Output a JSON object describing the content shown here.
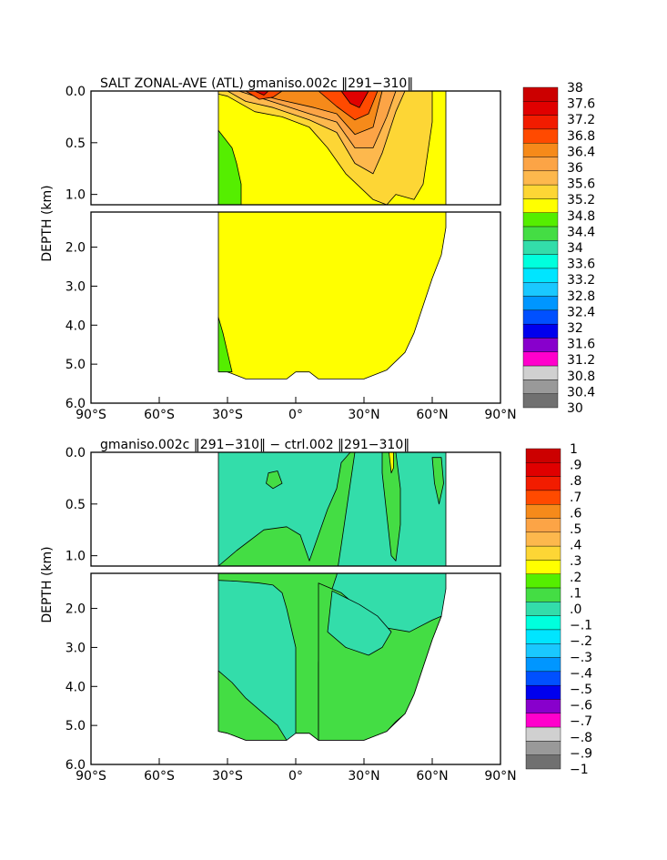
{
  "chart_data": [
    {
      "type": "heatmap",
      "title": "SALT ZONAL-AVE (ATL) gmaniso.002c ‖291−310‖",
      "xlabel": "",
      "ylabel": "DEPTH (km)",
      "x_range": [
        -90,
        90
      ],
      "y_range_km": [
        0,
        6
      ],
      "x_ticks": [
        "90°S",
        "60°S",
        "30°S",
        "0°",
        "30°N",
        "60°N",
        "90°N"
      ],
      "y_ticks": [
        "0.0",
        "0.5",
        "1.0",
        "2.0",
        "3.0",
        "4.0",
        "5.0",
        "6.0"
      ],
      "legend_labels": [
        "38",
        "37.6",
        "37.2",
        "36.8",
        "36.4",
        "36",
        "35.6",
        "35.2",
        "34.8",
        "34.4",
        "34",
        "33.6",
        "33.2",
        "32.8",
        "32.4",
        "32",
        "31.6",
        "31.2",
        "30.8",
        "30.4",
        "30"
      ],
      "legend_colors": [
        "#cc0000",
        "#e00000",
        "#f21c00",
        "#ff4a00",
        "#f68a1a",
        "#fca446",
        "#fdb84d",
        "#fdd635",
        "#ffff00",
        "#55ee00",
        "#44dd44",
        "#33ddaa",
        "#00ffdd",
        "#00e5ff",
        "#1ac8ff",
        "#0096ff",
        "#0050ff",
        "#0000ee",
        "#8800cc",
        "#ff00cc",
        "#d0d0d0",
        "#999999",
        "#707070"
      ],
      "domain": {
        "x_start": -34,
        "surface_x_end": 66,
        "bottom_profile": [
          [
            -34,
            5.15
          ],
          [
            -30,
            5.2
          ],
          [
            -26,
            5.32
          ],
          [
            -22,
            5.38
          ],
          [
            -14,
            5.38
          ],
          [
            -4,
            5.38
          ],
          [
            0,
            5.2
          ],
          [
            6,
            5.2
          ],
          [
            10,
            5.38
          ],
          [
            30,
            5.38
          ],
          [
            40,
            5.15
          ],
          [
            48,
            4.7
          ],
          [
            52,
            4.2
          ],
          [
            56,
            3.5
          ],
          [
            60,
            2.8
          ],
          [
            64,
            2.2
          ],
          [
            66,
            1.5
          ]
        ]
      },
      "regions": [
        {
          "value_range": "34.8-35.2",
          "color": "#ffff00",
          "points": [
            [
              -34,
              0
            ],
            [
              66,
              0
            ],
            [
              66,
              1.5
            ],
            [
              64,
              2.2
            ],
            [
              60,
              2.8
            ],
            [
              56,
              3.5
            ],
            [
              52,
              4.2
            ],
            [
              48,
              4.7
            ],
            [
              40,
              5.15
            ],
            [
              30,
              5.38
            ],
            [
              10,
              5.38
            ],
            [
              6,
              5.2
            ],
            [
              0,
              5.2
            ],
            [
              -4,
              5.38
            ],
            [
              -22,
              5.38
            ],
            [
              -30,
              5.2
            ],
            [
              -34,
              5.15
            ]
          ]
        },
        {
          "value_range": "34.4-34.8",
          "color": "#55ee00",
          "points": [
            [
              -34,
              0.38
            ],
            [
              -28,
              0.55
            ],
            [
              -26,
              0.7
            ],
            [
              -24,
              0.9
            ],
            [
              -24,
              1.1
            ],
            [
              -34,
              1.1
            ]
          ]
        },
        {
          "value_range": "34.4-34.8",
          "color": "#55ee00",
          "points": [
            [
              -34,
              3.8
            ],
            [
              -32,
              4.2
            ],
            [
              -30,
              4.7
            ],
            [
              -28,
              5.2
            ],
            [
              -34,
              5.2
            ]
          ]
        },
        {
          "value_range": "35.2-35.6",
          "color": "#fdd635",
          "points": [
            [
              -34,
              0.0
            ],
            [
              60,
              0.0
            ],
            [
              60,
              0.3
            ],
            [
              56,
              0.9
            ],
            [
              52,
              1.05
            ],
            [
              44,
              1.0
            ],
            [
              40,
              1.1
            ],
            [
              34,
              1.05
            ],
            [
              22,
              0.8
            ],
            [
              14,
              0.55
            ],
            [
              6,
              0.35
            ],
            [
              -6,
              0.25
            ],
            [
              -18,
              0.2
            ],
            [
              -30,
              0.05
            ],
            [
              -34,
              0.03
            ]
          ]
        },
        {
          "value_range": "35.6-36.0",
          "color": "#fdb84d",
          "points": [
            [
              -30,
              0.0
            ],
            [
              48,
              0.0
            ],
            [
              44,
              0.2
            ],
            [
              38,
              0.6
            ],
            [
              34,
              0.8
            ],
            [
              26,
              0.7
            ],
            [
              18,
              0.4
            ],
            [
              6,
              0.28
            ],
            [
              -10,
              0.16
            ],
            [
              -22,
              0.1
            ]
          ]
        },
        {
          "value_range": "36.0-36.4",
          "color": "#fca446",
          "points": [
            [
              -25,
              0.0
            ],
            [
              44,
              0.0
            ],
            [
              40,
              0.25
            ],
            [
              34,
              0.55
            ],
            [
              26,
              0.55
            ],
            [
              18,
              0.3
            ],
            [
              6,
              0.22
            ],
            [
              -8,
              0.12
            ]
          ]
        },
        {
          "value_range": "36.4-36.8",
          "color": "#f68a1a",
          "points": [
            [
              -22,
              0.0
            ],
            [
              38,
              0.0
            ],
            [
              34,
              0.35
            ],
            [
              26,
              0.42
            ],
            [
              18,
              0.22
            ],
            [
              8,
              0.16
            ],
            [
              -8,
              0.08
            ]
          ]
        },
        {
          "value_range": "36.8-37.2",
          "color": "#ff4a00",
          "points": [
            [
              -22,
              0.0
            ],
            [
              -6,
              0.0
            ],
            [
              -10,
              0.06
            ],
            [
              -16,
              0.08
            ]
          ]
        },
        {
          "value_range": "36.8-37.2",
          "color": "#ff4a00",
          "points": [
            [
              10,
              0.0
            ],
            [
              36,
              0.0
            ],
            [
              32,
              0.22
            ],
            [
              26,
              0.28
            ],
            [
              18,
              0.15
            ]
          ]
        },
        {
          "value_range": "37.2-37.6",
          "color": "#e00000",
          "points": [
            [
              -18,
              0.0
            ],
            [
              -12,
              0.0
            ],
            [
              -14,
              0.04
            ]
          ]
        },
        {
          "value_range": "37.2-37.6",
          "color": "#e00000",
          "points": [
            [
              20,
              0.0
            ],
            [
              32,
              0.0
            ],
            [
              28,
              0.16
            ],
            [
              24,
              0.12
            ]
          ]
        }
      ]
    },
    {
      "type": "heatmap",
      "title": "gmaniso.002c ‖291−310‖ − ctrl.002 ‖291−310‖",
      "xlabel": "",
      "ylabel": "DEPTH (km)",
      "x_range": [
        -90,
        90
      ],
      "y_range_km": [
        0,
        6
      ],
      "x_ticks": [
        "90°S",
        "60°S",
        "30°S",
        "0°",
        "30°N",
        "60°N",
        "90°N"
      ],
      "y_ticks": [
        "0.0",
        "0.5",
        "1.0",
        "2.0",
        "3.0",
        "4.0",
        "5.0",
        "6.0"
      ],
      "legend_labels": [
        "1",
        ".9",
        ".8",
        ".7",
        ".6",
        ".5",
        ".4",
        ".3",
        ".2",
        ".1",
        ".0",
        "−.1",
        "−.2",
        "−.3",
        "−.4",
        "−.5",
        "−.6",
        "−.7",
        "−.8",
        "−.9",
        "−1"
      ],
      "legend_colors": [
        "#cc0000",
        "#e00000",
        "#f21c00",
        "#ff4a00",
        "#f68a1a",
        "#fca446",
        "#fdb84d",
        "#fdd635",
        "#ffff00",
        "#55ee00",
        "#44dd44",
        "#33ddaa",
        "#00ffdd",
        "#00e5ff",
        "#1ac8ff",
        "#0096ff",
        "#0050ff",
        "#0000ee",
        "#8800cc",
        "#ff00cc",
        "#d0d0d0",
        "#999999",
        "#707070"
      ],
      "domain": {
        "x_start": -34,
        "surface_x_end": 66,
        "bottom_profile": [
          [
            -34,
            5.15
          ],
          [
            -30,
            5.2
          ],
          [
            -26,
            5.32
          ],
          [
            -22,
            5.38
          ],
          [
            -14,
            5.38
          ],
          [
            -4,
            5.38
          ],
          [
            0,
            5.2
          ],
          [
            6,
            5.2
          ],
          [
            10,
            5.38
          ],
          [
            30,
            5.38
          ],
          [
            40,
            5.15
          ],
          [
            48,
            4.7
          ],
          [
            52,
            4.2
          ],
          [
            56,
            3.5
          ],
          [
            60,
            2.8
          ],
          [
            64,
            2.2
          ],
          [
            66,
            1.5
          ]
        ]
      },
      "regions": [
        {
          "value_range": "-0.1-0.0",
          "color": "#33ddaa",
          "points": [
            [
              -34,
              0
            ],
            [
              66,
              0
            ],
            [
              66,
              1.5
            ],
            [
              64,
              2.2
            ],
            [
              60,
              2.8
            ],
            [
              56,
              3.5
            ],
            [
              52,
              4.2
            ],
            [
              48,
              4.7
            ],
            [
              40,
              5.15
            ],
            [
              30,
              5.38
            ],
            [
              10,
              5.38
            ],
            [
              6,
              5.2
            ],
            [
              0,
              5.2
            ],
            [
              -4,
              5.38
            ],
            [
              -22,
              5.38
            ],
            [
              -30,
              5.2
            ],
            [
              -34,
              5.15
            ]
          ]
        },
        {
          "value_range": "0.0-0.1",
          "color": "#44dd44",
          "points": [
            [
              -34,
              1.1
            ],
            [
              -26,
              0.95
            ],
            [
              -14,
              0.75
            ],
            [
              -4,
              0.72
            ],
            [
              2,
              0.8
            ],
            [
              6,
              1.05
            ],
            [
              10,
              0.8
            ],
            [
              14,
              0.55
            ],
            [
              18,
              0.35
            ],
            [
              20,
              0.1
            ],
            [
              24,
              0.0
            ],
            [
              26,
              0.0
            ],
            [
              24,
              0.3
            ],
            [
              22,
              0.6
            ],
            [
              20,
              0.9
            ],
            [
              18,
              1.15
            ],
            [
              16,
              1.5
            ],
            [
              14,
              2.0
            ],
            [
              12,
              2.6
            ],
            [
              10,
              3.4
            ],
            [
              10,
              5.38
            ],
            [
              6,
              5.2
            ],
            [
              0,
              5.2
            ],
            [
              0,
              3.0
            ],
            [
              -4,
              2.0
            ],
            [
              -6,
              1.6
            ],
            [
              -10,
              1.4
            ],
            [
              -16,
              1.35
            ],
            [
              -26,
              1.3
            ],
            [
              -34,
              1.28
            ]
          ]
        },
        {
          "value_range": "0.0-0.1",
          "color": "#44dd44",
          "points": [
            [
              -34,
              3.6
            ],
            [
              -28,
              3.9
            ],
            [
              -22,
              4.3
            ],
            [
              -14,
              4.7
            ],
            [
              -8,
              5.0
            ],
            [
              -4,
              5.38
            ],
            [
              -22,
              5.38
            ],
            [
              -30,
              5.2
            ],
            [
              -34,
              5.15
            ]
          ]
        },
        {
          "value_range": "0.0-0.1",
          "color": "#44dd44",
          "points": [
            [
              10,
              1.35
            ],
            [
              20,
              1.6
            ],
            [
              30,
              2.1
            ],
            [
              40,
              2.5
            ],
            [
              50,
              2.6
            ],
            [
              60,
              2.3
            ],
            [
              64,
              2.2
            ],
            [
              60,
              2.8
            ],
            [
              56,
              3.5
            ],
            [
              52,
              4.2
            ],
            [
              48,
              4.7
            ],
            [
              44,
              4.9
            ],
            [
              40,
              5.15
            ],
            [
              30,
              5.38
            ],
            [
              10,
              5.38
            ]
          ]
        },
        {
          "value_range": "-0.1-0.0",
          "color": "#33ddaa",
          "points": [
            [
              16,
              1.55
            ],
            [
              28,
              1.9
            ],
            [
              36,
              2.2
            ],
            [
              42,
              2.6
            ],
            [
              38,
              3.0
            ],
            [
              32,
              3.2
            ],
            [
              22,
              3.0
            ],
            [
              14,
              2.6
            ]
          ]
        },
        {
          "value_range": "0.0-0.1",
          "color": "#44dd44",
          "points": [
            [
              38,
              0.0
            ],
            [
              44,
              0.0
            ],
            [
              46,
              0.35
            ],
            [
              46,
              0.7
            ],
            [
              44,
              1.05
            ],
            [
              42,
              1.0
            ],
            [
              40,
              0.6
            ],
            [
              38,
              0.2
            ]
          ]
        },
        {
          "value_range": "0.2-0.3",
          "color": "#ffff00",
          "points": [
            [
              41,
              0.0
            ],
            [
              43,
              0.0
            ],
            [
              43,
              0.15
            ],
            [
              42,
              0.2
            ]
          ]
        },
        {
          "value_range": "0.0-0.1",
          "color": "#44dd44",
          "points": [
            [
              60,
              0.05
            ],
            [
              64,
              0.05
            ],
            [
              65,
              0.3
            ],
            [
              63,
              0.5
            ],
            [
              61,
              0.3
            ]
          ]
        },
        {
          "value_range": "0.0-0.1",
          "color": "#44dd44",
          "points": [
            [
              -12,
              0.2
            ],
            [
              -8,
              0.18
            ],
            [
              -6,
              0.3
            ],
            [
              -10,
              0.35
            ],
            [
              -13,
              0.3
            ]
          ]
        }
      ]
    }
  ]
}
